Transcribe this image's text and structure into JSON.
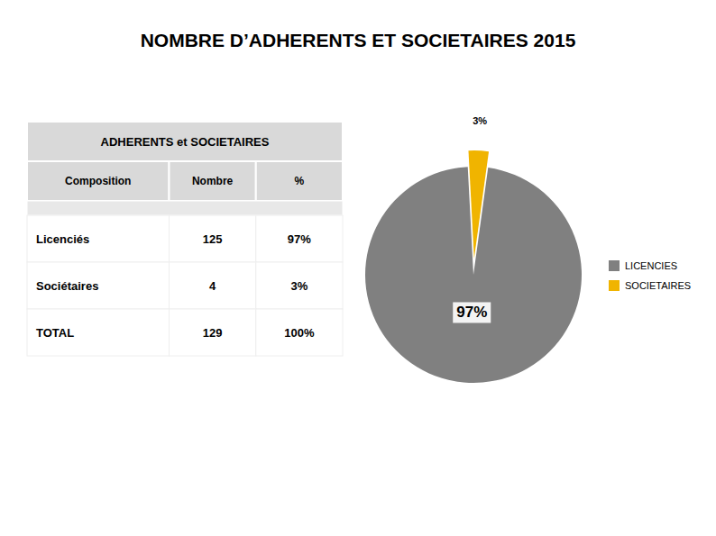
{
  "chart_data": [
    {
      "type": "pie",
      "title": "NOMBRE D’ADHERENTS ET SOCIETAIRES 2015",
      "categories": [
        "LICENCIES",
        "SOCIETAIRES"
      ],
      "values": [
        97,
        3
      ],
      "value_labels": [
        "97%",
        "3%"
      ],
      "colors": [
        "#808080",
        "#f0b400"
      ],
      "data_labels": true,
      "legend": "right"
    },
    {
      "type": "table",
      "title": "ADHERENTS et SOCIETAIRES",
      "xlabel": "Composition",
      "categories": [
        "Nombre",
        "%"
      ],
      "series": [
        {
          "name": "Licenciés",
          "values": [
            125,
            97
          ],
          "value_labels": [
            "125",
            "97%"
          ]
        },
        {
          "name": "Sociétaires",
          "values": [
            4,
            3
          ],
          "value_labels": [
            "4",
            "3%"
          ]
        },
        {
          "name": "TOTAL",
          "values": [
            129,
            100
          ],
          "value_labels": [
            "129",
            "100%"
          ]
        }
      ]
    }
  ]
}
